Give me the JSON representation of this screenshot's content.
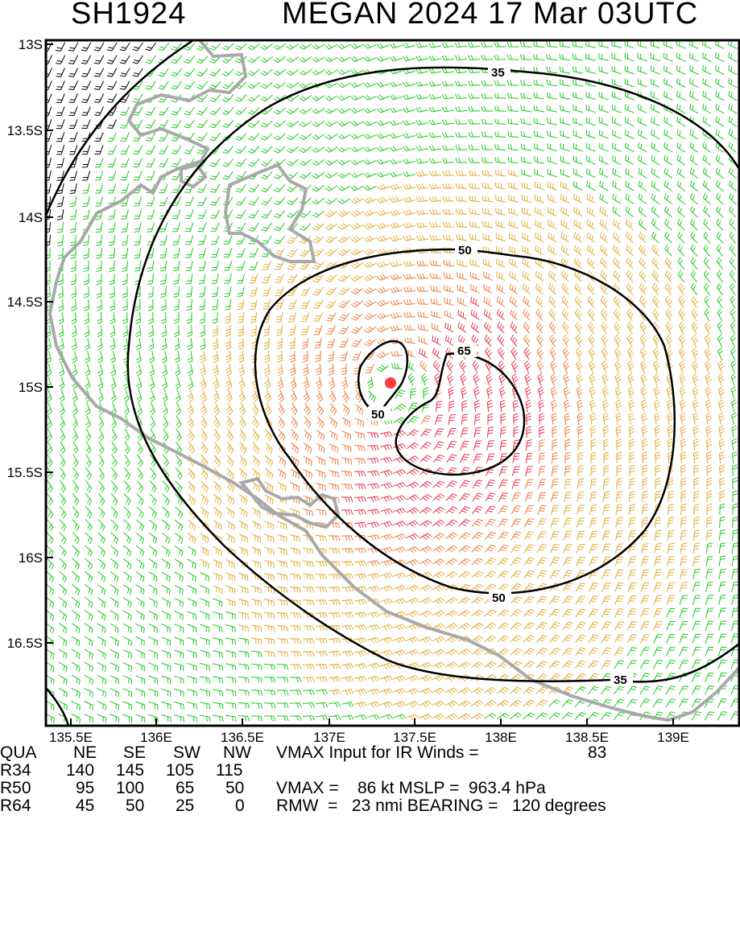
{
  "storm_id": "SH1924",
  "title": "MEGAN 2024 17 Mar 03UTC",
  "map": {
    "lat_labels": [
      "13S",
      "13.5S",
      "14S",
      "14.5S",
      "15S",
      "15.5S",
      "16S",
      "16.5S"
    ],
    "lon_labels": [
      "135.5E",
      "136E",
      "136.5E",
      "137E",
      "137.5E",
      "138E",
      "138.5E",
      "139E"
    ],
    "contour_labels": [
      {
        "text": "35"
      },
      {
        "text": "50"
      },
      {
        "text": "65"
      },
      {
        "text": "50"
      },
      {
        "text": "50"
      },
      {
        "text": "35"
      }
    ],
    "colors": {
      "black_barbs": "#000000",
      "green_barbs": "#1ec81e",
      "yellow_barbs": "#e3aa33",
      "orange_barbs": "#ec7c3c",
      "red_barbs": "#e8334a",
      "coastline": "#a9a9a9",
      "center_marker": "#ff3b3b"
    }
  },
  "table": {
    "header": {
      "label": "QUA",
      "ne": "NE",
      "se": "SE",
      "sw": "SW",
      "nw": "NW",
      "note": "VMAX Input for IR Winds =",
      "note_value": "83"
    },
    "r34": {
      "label": "R34",
      "ne": "140",
      "se": "145",
      "sw": "105",
      "nw": "115"
    },
    "r50": {
      "label": "R50",
      "ne": "95",
      "se": "100",
      "sw": "65",
      "nw": "50",
      "info": "VMAX =    86 kt MSLP =  963.4 hPa"
    },
    "r64": {
      "label": "R64",
      "ne": "45",
      "se": "50",
      "sw": "25",
      "nw": "0",
      "info": "RMW  =   23 nmi BEARING =   120 degrees"
    }
  }
}
